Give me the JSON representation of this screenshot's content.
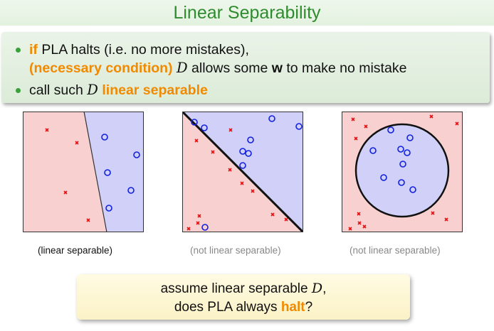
{
  "title": "Linear Separability",
  "bullets": {
    "b1_if": "if",
    "b1_text": " PLA halts (i.e. no more mistakes),",
    "b1_cond": "(necessary condition)",
    "b1_D": "D",
    "b1_allows": " allows some ",
    "b1_w": "w",
    "b1_end": " to make no mistake",
    "b2_pre": "call such ",
    "b2_D": "D",
    "b2_bold": " linear separable"
  },
  "panels": [
    {
      "caption": "(linear separable)"
    },
    {
      "caption": "(not linear separable)"
    },
    {
      "caption": "(not linear separable)"
    }
  ],
  "question": {
    "line1": "assume linear separable ",
    "line1_D": "D",
    "line1_end": ",",
    "line2_pre": "does PLA always ",
    "line2_bold": "halt",
    "line2_end": "?"
  },
  "colors": {
    "title": "#2e8b2e",
    "orange": "#f08a00",
    "negative_region": "#f8d0d0",
    "positive_region": "#d0d0f8",
    "cross": "#e01010",
    "circle": "#1020e0",
    "caption_gray": "#888888"
  }
}
